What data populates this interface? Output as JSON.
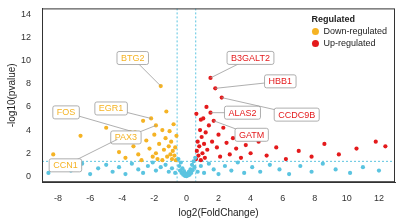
{
  "chart_data": {
    "type": "scatter",
    "x_label": "log2(FoldChange)",
    "y_label": "-log10(pvalue)",
    "xlim": [
      -9,
      13
    ],
    "xticks": [
      -8,
      -6,
      -4,
      -2,
      0,
      2,
      4,
      6,
      8,
      10,
      12
    ],
    "ylim": [
      -0.5,
      14.5
    ],
    "yticks": [
      0,
      2,
      4,
      6,
      8,
      10,
      12,
      14
    ],
    "grid": false,
    "legend": "upper right",
    "legend_title": "Regulated",
    "thresholds": {
      "x": [
        -0.58,
        0.58
      ],
      "y": 1.3
    },
    "series": [
      {
        "color": "#5bc4e0",
        "x": [
          -8.6,
          -7.8,
          -7.2,
          -6.5,
          -6.0,
          -5.5,
          -5.0,
          -4.6,
          -4.2,
          -3.8,
          -3.4,
          -3.0,
          -2.7,
          -2.4,
          -2.1,
          -1.9,
          -1.6,
          -1.3,
          -1.1,
          -0.9,
          -0.7,
          -0.5,
          -0.45,
          -0.4,
          -0.35,
          -0.3,
          -0.25,
          -0.2,
          -0.15,
          -0.1,
          -0.05,
          0,
          0.05,
          0.1,
          0.15,
          0.2,
          0.25,
          0.3,
          0.35,
          0.4,
          0.45,
          0.5,
          0.55,
          0.7,
          0.9,
          1.1,
          1.4,
          1.7,
          2.0,
          2.4,
          2.8,
          3.2,
          3.6,
          4.1,
          4.6,
          5.2,
          5.8,
          6.4,
          7.1,
          7.8,
          8.5,
          9.3,
          10.2,
          11.0,
          12.0
        ],
        "values": [
          0.3,
          0.9,
          0.5,
          1.1,
          0.2,
          0.7,
          1.0,
          0.4,
          0.8,
          0.2,
          1.1,
          0.6,
          0.3,
          0.9,
          1.2,
          0.5,
          0.8,
          1.0,
          0.4,
          0.7,
          0.3,
          1.5,
          0.9,
          0.5,
          1.2,
          0.3,
          0.7,
          0.15,
          0.45,
          0.05,
          0.25,
          0.02,
          0.2,
          0.08,
          0.4,
          0.15,
          0.6,
          0.3,
          1.0,
          0.55,
          1.3,
          0.8,
          1.6,
          0.4,
          0.9,
          0.3,
          1.1,
          0.6,
          0.2,
          0.9,
          0.5,
          1.2,
          0.3,
          0.8,
          0.4,
          1.0,
          0.6,
          0.2,
          0.9,
          0.4,
          1.1,
          0.6,
          0.3,
          0.8,
          0.5
        ]
      },
      {
        "name": "Down-regulated",
        "color": "#f5b324",
        "x": [
          -8.3,
          -6.6,
          -5.0,
          -4.3,
          -4.2,
          -3.8,
          -3.5,
          -3.3,
          -3.2,
          -3.0,
          -2.8,
          -2.7,
          -2.5,
          -2.3,
          -2.2,
          -2.1,
          -2.0,
          -1.9,
          -1.9,
          -1.8,
          -1.7,
          -1.6,
          -1.5,
          -1.5,
          -1.4,
          -1.3,
          -1.25,
          -1.2,
          -1.1,
          -1.05,
          -1.0,
          -0.95,
          -0.9,
          -0.85,
          -0.8,
          -0.75,
          -0.7,
          -0.65,
          -0.62
        ],
        "values": [
          1.9,
          3.5,
          4.2,
          3.2,
          2.1,
          1.6,
          3.8,
          2.6,
          3.8,
          1.9,
          1.4,
          4.8,
          3.1,
          2.4,
          5.0,
          1.7,
          3.6,
          2.0,
          4.4,
          1.5,
          2.8,
          7.8,
          4.0,
          1.4,
          2.3,
          3.3,
          5.6,
          1.7,
          2.6,
          3.9,
          1.9,
          3.0,
          1.5,
          2.2,
          4.5,
          1.8,
          2.5,
          1.4,
          3.5
        ],
        "labels": [
          {
            "text": "BTG2",
            "x": -1.6,
            "y": 7.8
          },
          {
            "text": "FOS",
            "x": -3.2,
            "y": 3.8
          },
          {
            "text": "EGR1",
            "x": -2.2,
            "y": 5.0
          },
          {
            "text": "PAX3",
            "x": -1.9,
            "y": 4.4
          },
          {
            "text": "CCN1",
            "x": -4.3,
            "y": 3.2
          }
        ]
      },
      {
        "name": "Up-regulated",
        "color": "#e41a1c",
        "x": [
          0.6,
          0.62,
          0.65,
          0.7,
          0.75,
          0.8,
          0.85,
          0.9,
          0.9,
          0.95,
          1.0,
          1.05,
          1.1,
          1.15,
          1.2,
          1.25,
          1.3,
          1.4,
          1.5,
          1.5,
          1.6,
          1.7,
          1.8,
          1.9,
          2.0,
          2.1,
          2.2,
          2.3,
          2.5,
          2.7,
          2.9,
          3.1,
          3.4,
          3.7,
          4.0,
          4.5,
          5.0,
          5.6,
          6.2,
          7.0,
          7.8,
          8.6,
          9.5,
          10.6,
          11.8,
          12.4
        ],
        "values": [
          1.5,
          5.4,
          2.2,
          3.0,
          1.8,
          2.6,
          4.0,
          1.4,
          4.9,
          3.4,
          2.0,
          5.0,
          2.8,
          1.6,
          3.8,
          6.0,
          2.3,
          4.4,
          5.5,
          8.5,
          3.0,
          4.8,
          7.6,
          2.5,
          3.6,
          1.7,
          6.8,
          4.2,
          2.9,
          1.9,
          3.3,
          2.4,
          1.6,
          2.7,
          2.0,
          3.0,
          1.8,
          2.5,
          1.5,
          2.2,
          1.7,
          2.8,
          1.9,
          2.4,
          3.0,
          2.6
        ],
        "labels": [
          {
            "text": "B3GALT2",
            "x": 1.5,
            "y": 8.5
          },
          {
            "text": "HBB1",
            "x": 1.8,
            "y": 7.6
          },
          {
            "text": "ALAS2",
            "x": 1.5,
            "y": 5.5
          },
          {
            "text": "CCDC9B",
            "x": 2.2,
            "y": 6.8
          },
          {
            "text": "GATM",
            "x": 1.7,
            "y": 4.8
          }
        ]
      }
    ]
  }
}
